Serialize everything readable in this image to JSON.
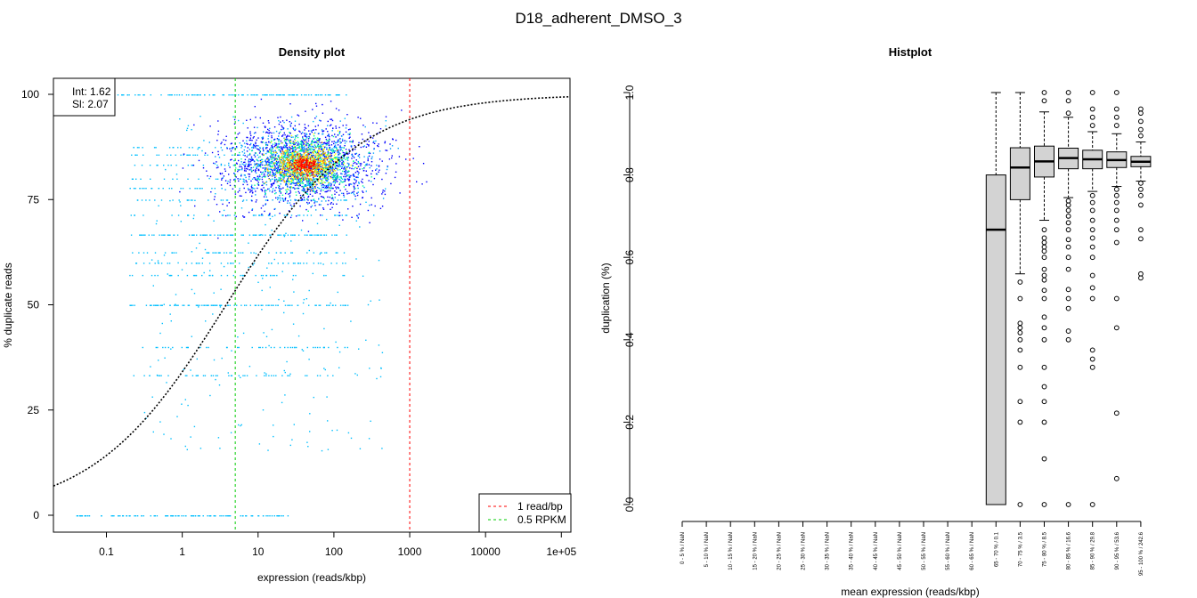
{
  "figure": {
    "title": "D18_adherent_DMSO_3"
  },
  "chart_data": [
    {
      "type": "scatter",
      "title": "Density plot",
      "xlabel": "expression (reads/kbp)",
      "ylabel": "% duplicate reads",
      "x_scale": "log10",
      "xlim": [
        0.02,
        130000
      ],
      "ylim": [
        0,
        100
      ],
      "x_ticks": [
        "0.1",
        "1",
        "10",
        "100",
        "1000",
        "10000",
        "1e+05"
      ],
      "x_tick_values": [
        0.1,
        1,
        10,
        100,
        1000,
        10000,
        100000
      ],
      "y_ticks": [
        "0",
        "25",
        "50",
        "75",
        "100"
      ],
      "y_tick_values": [
        0,
        25,
        50,
        75,
        100
      ],
      "fit_label_int": "Int: 1.62",
      "fit_label_sl": "Sl: 2.07",
      "fit_intercept": 1.62,
      "fit_slope": 2.07,
      "vlines": [
        {
          "name": "1 read/bp",
          "x": 1000,
          "color": "#ff0000"
        },
        {
          "name": "0.5 RPKM",
          "x": 5,
          "color": "#00cc00"
        }
      ],
      "legend": [
        "1 read/bp",
        "0.5 RPKM"
      ],
      "legend_position": "bottom-right",
      "fit_legend_position": "top-left",
      "density_peak": {
        "x": 40,
        "y": 83.5
      },
      "density_colors": [
        "#0000ff",
        "#00a0ff",
        "#00ff90",
        "#ffff00",
        "#ff9000",
        "#ff0000"
      ],
      "point_color": "#00bfff",
      "grid": false
    },
    {
      "type": "box",
      "title": "Histplot",
      "xlabel": "mean expression (reads/kbp)",
      "ylabel": "duplication (%)",
      "ylim": [
        0,
        1
      ],
      "y_ticks": [
        "0.0",
        "0.2",
        "0.4",
        "0.6",
        "0.8",
        "1.0"
      ],
      "y_tick_values": [
        0,
        0.2,
        0.4,
        0.6,
        0.8,
        1.0
      ],
      "categories": [
        "0 - 5 % / NaN",
        "5 - 10 % / NaN",
        "10 - 15 % / NaN",
        "15 - 20 % / NaN",
        "20 - 25 % / NaN",
        "25 - 30 % / NaN",
        "30 - 35 % / NaN",
        "35 - 40 % / NaN",
        "40 - 45 % / NaN",
        "45 - 50 % / NaN",
        "50 - 55 % / NaN",
        "55 - 60 % / NaN",
        "60 - 65 % / NaN",
        "65 - 70 % / 0.1",
        "70 - 75 % / 3.5",
        "75 - 80 % / 8.5",
        "80 - 85 % / 16.6",
        "85 - 90 % / 29.8",
        "90 - 95 % / 53.6",
        "95 - 100 % / 242.6"
      ],
      "boxes": [
        null,
        null,
        null,
        null,
        null,
        null,
        null,
        null,
        null,
        null,
        null,
        null,
        null,
        {
          "whisker_low": 0.0,
          "q1": 0.0,
          "median": 0.667,
          "q3": 0.8,
          "whisker_high": 1.0,
          "outliers": []
        },
        {
          "whisker_low": 0.56,
          "q1": 0.74,
          "median": 0.818,
          "q3": 0.866,
          "whisker_high": 1.0,
          "outliers": [
            0.0,
            0.2,
            0.25,
            0.333,
            0.375,
            0.4,
            0.417,
            0.429,
            0.44,
            0.5,
            0.54
          ]
        },
        {
          "whisker_low": 0.69,
          "q1": 0.795,
          "median": 0.833,
          "q3": 0.87,
          "whisker_high": 0.953,
          "outliers": [
            0.0,
            0.111,
            0.2,
            0.25,
            0.286,
            0.333,
            0.4,
            0.429,
            0.455,
            0.5,
            0.52,
            0.545,
            0.556,
            0.571,
            0.6,
            0.615,
            0.625,
            0.636,
            0.647,
            0.667,
            0.98,
            1.0
          ]
        },
        {
          "whisker_low": 0.745,
          "q1": 0.815,
          "median": 0.841,
          "q3": 0.865,
          "whisker_high": 0.94,
          "outliers": [
            0.0,
            0.4,
            0.421,
            0.476,
            0.5,
            0.522,
            0.571,
            0.6,
            0.625,
            0.643,
            0.667,
            0.684,
            0.7,
            0.714,
            0.727,
            0.737,
            0.95,
            0.98,
            1.0
          ]
        },
        {
          "whisker_low": 0.76,
          "q1": 0.815,
          "median": 0.838,
          "q3": 0.86,
          "whisker_high": 0.905,
          "outliers": [
            0.0,
            0.333,
            0.353,
            0.375,
            0.5,
            0.526,
            0.556,
            0.6,
            0.625,
            0.647,
            0.667,
            0.69,
            0.714,
            0.733,
            0.75,
            0.92,
            0.94,
            0.96,
            1.0
          ]
        },
        {
          "whisker_low": 0.772,
          "q1": 0.818,
          "median": 0.836,
          "q3": 0.856,
          "whisker_high": 0.9,
          "outliers": [
            0.063,
            0.222,
            0.429,
            0.5,
            0.636,
            0.667,
            0.69,
            0.714,
            0.733,
            0.75,
            0.765,
            0.92,
            0.94,
            0.96,
            1.0
          ]
        },
        {
          "whisker_low": 0.785,
          "q1": 0.82,
          "median": 0.832,
          "q3": 0.845,
          "whisker_high": 0.88,
          "outliers": [
            0.55,
            0.56,
            0.645,
            0.667,
            0.727,
            0.75,
            0.765,
            0.78,
            0.895,
            0.91,
            0.93,
            0.95,
            0.96
          ]
        }
      ],
      "box_fill": "#d3d3d3",
      "grid": false
    }
  ]
}
